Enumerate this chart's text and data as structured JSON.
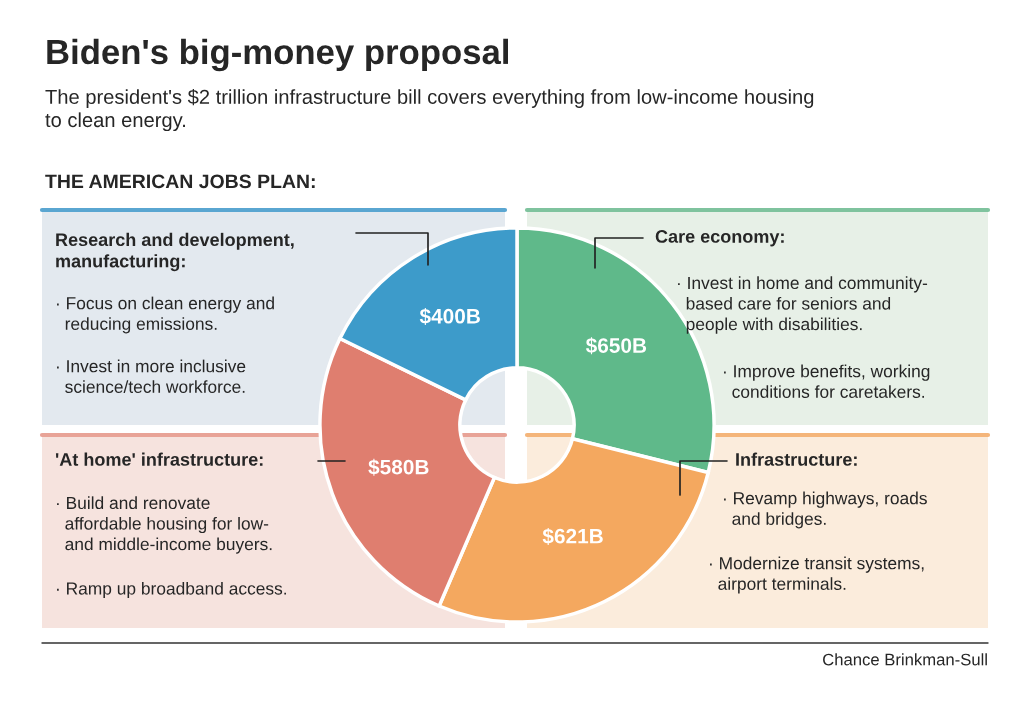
{
  "chart_data": {
    "type": "donut",
    "title": "Biden's big-money proposal",
    "subtitle": "The president's $2 trillion infrastructure bill covers everything from low-income housing\nto clean energy.",
    "categories": [
      null,
      null,
      null,
      null
    ],
    "values": [
      650,
      621,
      580,
      400
    ],
    "colors": [
      "#5fb98a",
      "#f4a85f",
      "#df7e6f",
      "#3d9bca"
    ],
    "value_labels": [
      "$650B",
      "$621B",
      "$580B",
      "$400B"
    ],
    "annotations": [
      "THE AMERICAN JOBS PLAN:",
      "Research and development,\nmanufacturing:",
      "· Focus on clean energy and\n  reducing emissions.",
      "· Invest in more inclusive\n  science/tech workforce.",
      "Care economy:",
      "· Invest in home and community-\n  based care for seniors and\n  people with disabilities.",
      "· Improve benefits, working\n  conditions for caretakers.",
      "'At home' infrastructure:",
      "· Build and renovate\n  affordable housing for low-\n  and middle-income buyers.",
      "· Ramp up broadband access.",
      "Infrastructure:",
      "· Revamp highways, roads\n  and bridges.",
      "· Modernize transit systems,\n  airport terminals.",
      "Chance Brinkman-Sull"
    ]
  }
}
